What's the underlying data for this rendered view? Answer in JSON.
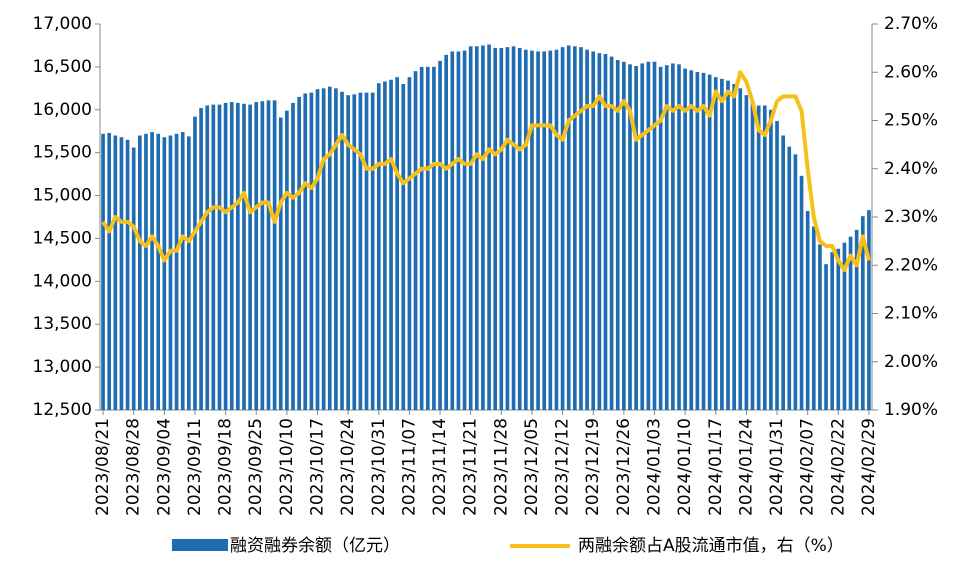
{
  "chart_data": {
    "type": "bar",
    "categories": [
      "2023/08/21",
      null,
      null,
      null,
      null,
      "2023/08/28",
      null,
      null,
      null,
      null,
      "2023/09/04",
      null,
      null,
      null,
      null,
      "2023/09/11",
      null,
      null,
      null,
      null,
      "2023/09/18",
      null,
      null,
      null,
      null,
      "2023/09/25",
      null,
      null,
      null,
      null,
      "2023/10/10",
      null,
      null,
      null,
      null,
      "2023/10/17",
      null,
      null,
      null,
      null,
      "2023/10/24",
      null,
      null,
      null,
      null,
      "2023/10/31",
      null,
      null,
      null,
      null,
      "2023/11/07",
      null,
      null,
      null,
      null,
      "2023/11/14",
      null,
      null,
      null,
      null,
      "2023/11/21",
      null,
      null,
      null,
      null,
      "2023/11/28",
      null,
      null,
      null,
      null,
      "2023/12/05",
      null,
      null,
      null,
      null,
      "2023/12/12",
      null,
      null,
      null,
      null,
      "2023/12/19",
      null,
      null,
      null,
      null,
      "2023/12/26",
      null,
      null,
      null,
      null,
      "2024/01/03",
      null,
      null,
      null,
      null,
      "2024/01/10",
      null,
      null,
      null,
      null,
      "2024/01/17",
      null,
      null,
      null,
      null,
      "2024/01/24",
      null,
      null,
      null,
      null,
      "2024/01/31",
      null,
      null,
      null,
      null,
      "2024/02/07",
      null,
      null,
      null,
      null,
      "2024/02/22",
      null,
      null,
      null,
      null,
      "2024/02/29"
    ],
    "series": [
      {
        "name": "融资融券余额（亿元）",
        "type": "bar",
        "color": "#1f6db0",
        "values": [
          15720,
          15730,
          15700,
          15680,
          15650,
          15560,
          15700,
          15720,
          15740,
          15720,
          15680,
          15700,
          15720,
          15740,
          15690,
          15920,
          16020,
          16050,
          16060,
          16060,
          16080,
          16090,
          16080,
          16070,
          16060,
          16090,
          16100,
          16110,
          16110,
          15910,
          15990,
          16080,
          16150,
          16190,
          16200,
          16240,
          16250,
          16270,
          16250,
          16210,
          16170,
          16180,
          16200,
          16200,
          16200,
          16310,
          16330,
          16350,
          16380,
          16300,
          16380,
          16450,
          16500,
          16500,
          16500,
          16570,
          16640,
          16680,
          16680,
          16690,
          16740,
          16740,
          16750,
          16760,
          16720,
          16720,
          16730,
          16740,
          16720,
          16700,
          16690,
          16680,
          16680,
          16690,
          16700,
          16730,
          16750,
          16740,
          16730,
          16700,
          16680,
          16660,
          16650,
          16620,
          16580,
          16560,
          16530,
          16510,
          16540,
          16560,
          16560,
          16500,
          16520,
          16540,
          16530,
          16480,
          16460,
          16440,
          16430,
          16410,
          16380,
          16360,
          16340,
          16300,
          16250,
          16170,
          16080,
          16050,
          16050,
          16000,
          15870,
          15700,
          15570,
          15480,
          15230,
          14820,
          14640,
          14430,
          14200,
          14340,
          14380,
          14450,
          14520,
          14600,
          14760,
          14830
        ]
      },
      {
        "name": "两融余额占A股流通市值，右（%）",
        "type": "line",
        "axis": "y2",
        "color": "#f7bf1a",
        "values": [
          2.29,
          2.27,
          2.3,
          2.29,
          2.29,
          2.28,
          2.25,
          2.24,
          2.26,
          2.24,
          2.21,
          2.23,
          2.23,
          2.26,
          2.25,
          2.27,
          2.29,
          2.31,
          2.32,
          2.32,
          2.31,
          2.32,
          2.33,
          2.35,
          2.31,
          2.32,
          2.33,
          2.33,
          2.29,
          2.33,
          2.35,
          2.34,
          2.35,
          2.37,
          2.36,
          2.38,
          2.42,
          2.43,
          2.45,
          2.47,
          2.45,
          2.44,
          2.43,
          2.4,
          2.4,
          2.41,
          2.41,
          2.42,
          2.39,
          2.37,
          2.38,
          2.39,
          2.4,
          2.4,
          2.41,
          2.41,
          2.4,
          2.41,
          2.42,
          2.41,
          2.41,
          2.43,
          2.42,
          2.44,
          2.43,
          2.44,
          2.46,
          2.45,
          2.44,
          2.45,
          2.49,
          2.49,
          2.49,
          2.49,
          2.47,
          2.46,
          2.5,
          2.51,
          2.52,
          2.53,
          2.53,
          2.55,
          2.53,
          2.53,
          2.52,
          2.54,
          2.52,
          2.46,
          2.47,
          2.48,
          2.49,
          2.5,
          2.53,
          2.52,
          2.53,
          2.52,
          2.53,
          2.52,
          2.53,
          2.51,
          2.56,
          2.54,
          2.56,
          2.55,
          2.6,
          2.58,
          2.54,
          2.48,
          2.47,
          2.5,
          2.54,
          2.55,
          2.55,
          2.55,
          2.52,
          2.4,
          2.3,
          2.25,
          2.24,
          2.24,
          2.21,
          2.19,
          2.22,
          2.2,
          2.26,
          2.21
        ]
      }
    ],
    "ylim": [
      12500,
      17000
    ],
    "yticks": [
      {
        "value": 12500,
        "label": "12,500"
      },
      {
        "value": 13000,
        "label": "13,000"
      },
      {
        "value": 13500,
        "label": "13,500"
      },
      {
        "value": 14000,
        "label": "14,000"
      },
      {
        "value": 14500,
        "label": "14,500"
      },
      {
        "value": 15000,
        "label": "15,000"
      },
      {
        "value": 15500,
        "label": "15,500"
      },
      {
        "value": 16000,
        "label": "16,000"
      },
      {
        "value": 16500,
        "label": "16,500"
      },
      {
        "value": 17000,
        "label": "17,000"
      }
    ],
    "y2lim": [
      1.9,
      2.7
    ],
    "y2ticks": [
      {
        "value": 1.9,
        "label": "1.90%"
      },
      {
        "value": 2.0,
        "label": "2.00%"
      },
      {
        "value": 2.1,
        "label": "2.10%"
      },
      {
        "value": 2.2,
        "label": "2.20%"
      },
      {
        "value": 2.3,
        "label": "2.30%"
      },
      {
        "value": 2.4,
        "label": "2.40%"
      },
      {
        "value": 2.5,
        "label": "2.50%"
      },
      {
        "value": 2.6,
        "label": "2.60%"
      },
      {
        "value": 2.7,
        "label": "2.70%"
      }
    ],
    "grid": false,
    "legend": "bottom"
  }
}
